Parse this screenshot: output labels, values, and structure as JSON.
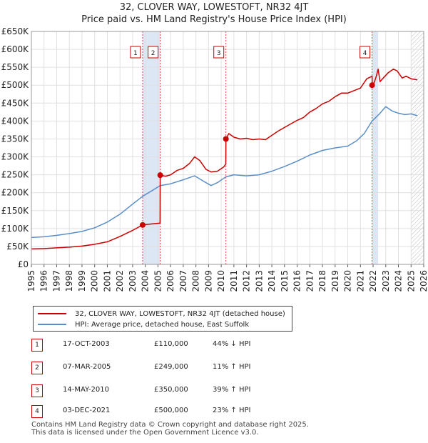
{
  "title_line1": "32, CLOVER WAY, LOWESTOFT, NR32 4JT",
  "title_line2": "Price paid vs. HM Land Registry's House Price Index (HPI)",
  "colors": {
    "property": "#cc0000",
    "hpi": "#5b8ec9",
    "band": "#dde6f5",
    "marker_line": "#cc0000"
  },
  "chart_data": {
    "type": "line",
    "y_ticks": [
      "£0",
      "£50K",
      "£100K",
      "£150K",
      "£200K",
      "£250K",
      "£300K",
      "£350K",
      "£400K",
      "£450K",
      "£500K",
      "£550K",
      "£600K",
      "£650K"
    ],
    "x_ticks": [
      "1995",
      "1996",
      "1997",
      "1998",
      "1999",
      "2000",
      "2001",
      "2002",
      "2003",
      "2004",
      "2005",
      "2006",
      "2007",
      "2008",
      "2009",
      "2010",
      "2011",
      "2012",
      "2013",
      "2014",
      "2015",
      "2016",
      "2017",
      "2018",
      "2019",
      "2020",
      "2021",
      "2022",
      "2023",
      "2024",
      "2025",
      "2026"
    ],
    "xlim": [
      1995,
      2026
    ],
    "ylim": [
      0,
      650000
    ],
    "shaded_bands": [
      [
        2003.79,
        2005.18
      ],
      [
        2021.92,
        2022.4
      ]
    ],
    "hatch_from": 2025.0,
    "series": [
      {
        "name": "32, CLOVER WAY, LOWESTOFT, NR32 4JT (detached house)",
        "points": [
          [
            1995.0,
            43000
          ],
          [
            1996.0,
            44000
          ],
          [
            1997.0,
            46000
          ],
          [
            1998.0,
            48000
          ],
          [
            1999.0,
            51000
          ],
          [
            2000.0,
            56000
          ],
          [
            2001.0,
            63000
          ],
          [
            2002.0,
            78000
          ],
          [
            2003.0,
            95000
          ],
          [
            2003.79,
            110000
          ],
          [
            2004.3,
            112000
          ],
          [
            2005.17,
            115000
          ],
          [
            2005.18,
            249000
          ],
          [
            2005.6,
            246000
          ],
          [
            2006.0,
            250000
          ],
          [
            2006.5,
            262000
          ],
          [
            2007.0,
            268000
          ],
          [
            2007.5,
            282000
          ],
          [
            2007.9,
            300000
          ],
          [
            2008.3,
            290000
          ],
          [
            2008.8,
            265000
          ],
          [
            2009.2,
            258000
          ],
          [
            2009.7,
            260000
          ],
          [
            2010.2,
            272000
          ],
          [
            2010.36,
            280000
          ],
          [
            2010.37,
            350000
          ],
          [
            2010.6,
            365000
          ],
          [
            2011.0,
            355000
          ],
          [
            2011.5,
            350000
          ],
          [
            2012.0,
            352000
          ],
          [
            2012.5,
            348000
          ],
          [
            2013.0,
            350000
          ],
          [
            2013.5,
            348000
          ],
          [
            2014.0,
            360000
          ],
          [
            2014.5,
            372000
          ],
          [
            2015.0,
            382000
          ],
          [
            2015.5,
            392000
          ],
          [
            2016.0,
            402000
          ],
          [
            2016.5,
            410000
          ],
          [
            2017.0,
            425000
          ],
          [
            2017.5,
            435000
          ],
          [
            2018.0,
            448000
          ],
          [
            2018.5,
            455000
          ],
          [
            2019.0,
            468000
          ],
          [
            2019.5,
            478000
          ],
          [
            2020.0,
            478000
          ],
          [
            2020.5,
            485000
          ],
          [
            2021.0,
            492000
          ],
          [
            2021.5,
            518000
          ],
          [
            2021.92,
            525000
          ],
          [
            2021.93,
            500000
          ],
          [
            2022.1,
            508000
          ],
          [
            2022.25,
            525000
          ],
          [
            2022.4,
            545000
          ],
          [
            2022.55,
            510000
          ],
          [
            2022.8,
            520000
          ],
          [
            2023.2,
            535000
          ],
          [
            2023.6,
            545000
          ],
          [
            2023.9,
            540000
          ],
          [
            2024.3,
            520000
          ],
          [
            2024.6,
            525000
          ],
          [
            2025.0,
            518000
          ],
          [
            2025.5,
            515000
          ]
        ]
      },
      {
        "name": "HPI: Average price, detached house, East Suffolk",
        "points": [
          [
            1995.0,
            75000
          ],
          [
            1996.0,
            77000
          ],
          [
            1997.0,
            81000
          ],
          [
            1998.0,
            86000
          ],
          [
            1999.0,
            92000
          ],
          [
            2000.0,
            102000
          ],
          [
            2001.0,
            118000
          ],
          [
            2002.0,
            140000
          ],
          [
            2003.0,
            168000
          ],
          [
            2003.79,
            190000
          ],
          [
            2004.5,
            205000
          ],
          [
            2005.18,
            220000
          ],
          [
            2006.0,
            225000
          ],
          [
            2007.0,
            236000
          ],
          [
            2007.9,
            247000
          ],
          [
            2008.6,
            232000
          ],
          [
            2009.2,
            220000
          ],
          [
            2009.7,
            228000
          ],
          [
            2010.36,
            244000
          ],
          [
            2011.0,
            250000
          ],
          [
            2012.0,
            247000
          ],
          [
            2013.0,
            250000
          ],
          [
            2014.0,
            260000
          ],
          [
            2015.0,
            273000
          ],
          [
            2016.0,
            288000
          ],
          [
            2017.0,
            305000
          ],
          [
            2018.0,
            318000
          ],
          [
            2019.0,
            325000
          ],
          [
            2020.0,
            330000
          ],
          [
            2020.7,
            345000
          ],
          [
            2021.3,
            365000
          ],
          [
            2021.92,
            400000
          ],
          [
            2022.5,
            420000
          ],
          [
            2023.0,
            440000
          ],
          [
            2023.5,
            428000
          ],
          [
            2024.0,
            422000
          ],
          [
            2024.5,
            418000
          ],
          [
            2025.0,
            420000
          ],
          [
            2025.5,
            415000
          ]
        ]
      }
    ],
    "sales": [
      {
        "label": "1",
        "x": 2003.79,
        "y": 110000
      },
      {
        "label": "2",
        "x": 2005.18,
        "y": 249000
      },
      {
        "label": "3",
        "x": 2010.37,
        "y": 350000
      },
      {
        "label": "4",
        "x": 2021.92,
        "y": 500000
      }
    ]
  },
  "legend": {
    "property_label": "32, CLOVER WAY, LOWESTOFT, NR32 4JT (detached house)",
    "hpi_label": "HPI: Average price, detached house, East Suffolk"
  },
  "transactions": [
    {
      "num": "1",
      "date": "17-OCT-2003",
      "price": "£110,000",
      "hpi": "44% ↓ HPI"
    },
    {
      "num": "2",
      "date": "07-MAR-2005",
      "price": "£249,000",
      "hpi": "11% ↑ HPI"
    },
    {
      "num": "3",
      "date": "14-MAY-2010",
      "price": "£350,000",
      "hpi": "39% ↑ HPI"
    },
    {
      "num": "4",
      "date": "03-DEC-2021",
      "price": "£500,000",
      "hpi": "23% ↑ HPI"
    }
  ],
  "footer_line1": "Contains HM Land Registry data © Crown copyright and database right 2025.",
  "footer_line2": "This data is licensed under the Open Government Licence v3.0."
}
